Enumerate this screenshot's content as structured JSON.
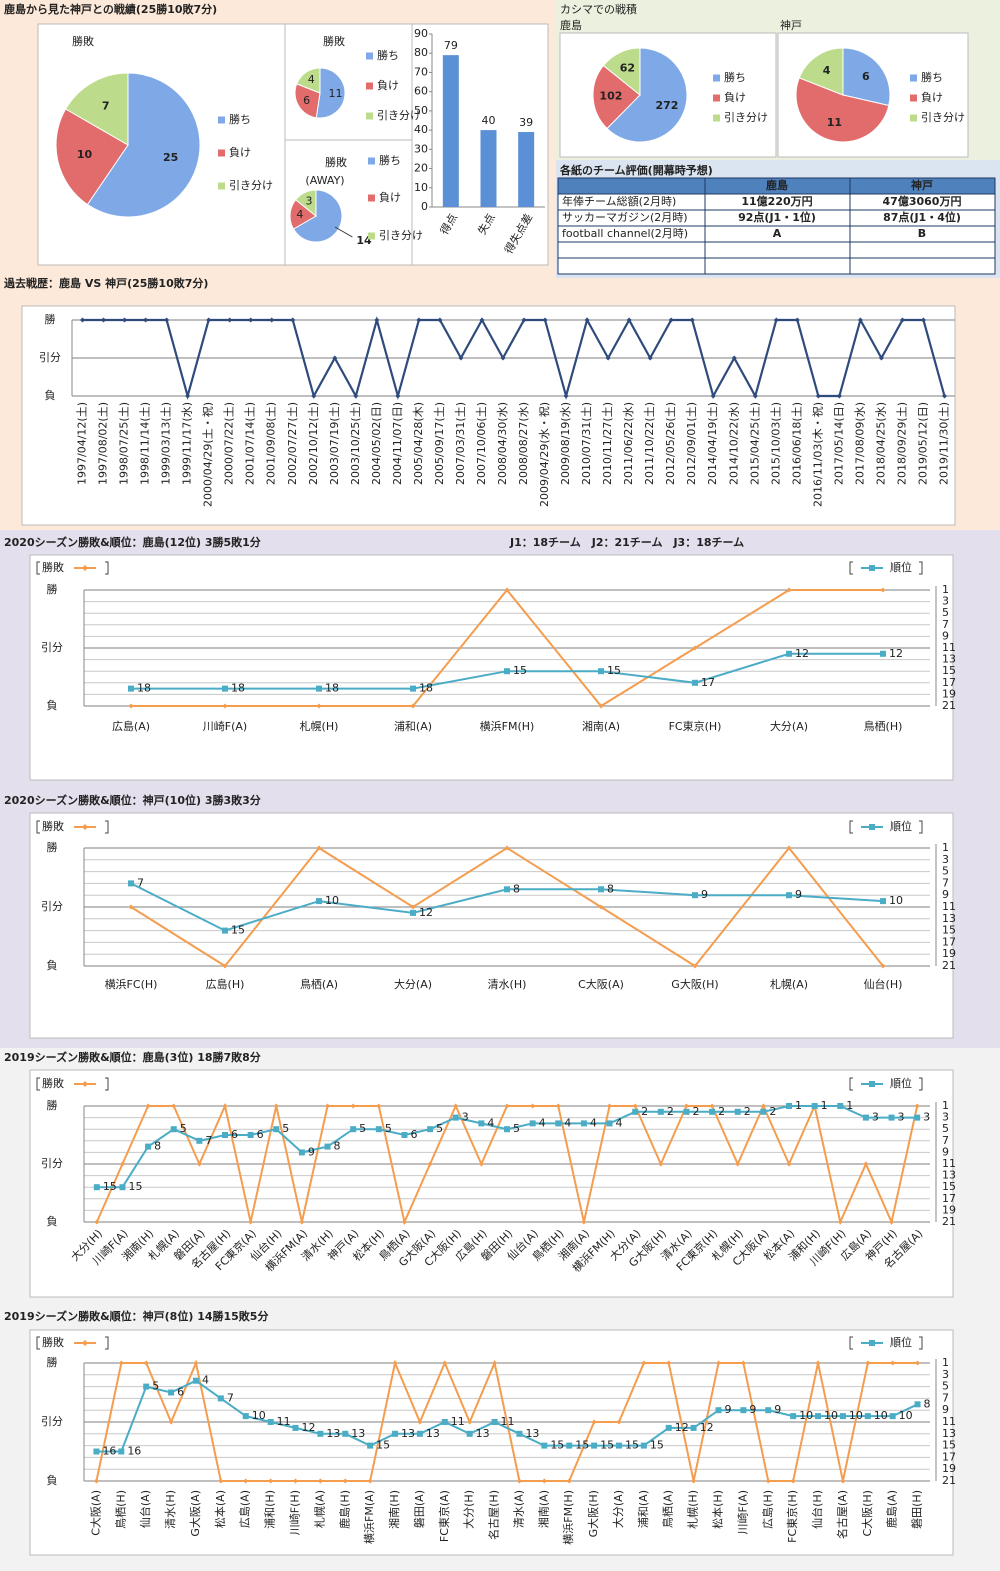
{
  "headings": {
    "record": "鹿島から見た神戸との戦績(25勝10敗7分)",
    "kashima": "カシマでの戦積"
  },
  "table": {
    "title": "各紙のチーム評価(開幕時予想)",
    "columns": [
      "鹿島",
      "神戸"
    ],
    "rows": [
      [
        "年俸チーム総額(2月時)",
        "11億220万円",
        "47億3060万円"
      ],
      [
        "サッカーマガジン(2月時)",
        "92点(J1・1位)",
        "87点(J1・4位)"
      ],
      [
        "football channel(2月時)",
        "A",
        "B"
      ]
    ]
  },
  "chart_data": [
    {
      "type": "pie",
      "title": "勝敗",
      "categories": [
        "勝ち",
        "負け",
        "引き分け"
      ],
      "values": [
        25,
        10,
        7
      ],
      "colors": [
        "#7fa9e6",
        "#e26b6b",
        "#bcdc8c"
      ]
    },
    {
      "type": "pie",
      "title": "勝敗",
      "categories": [
        "勝ち",
        "負け",
        "引き分け"
      ],
      "values": [
        11,
        6,
        4
      ],
      "colors": [
        "#7fa9e6",
        "#e26b6b",
        "#bcdc8c"
      ]
    },
    {
      "type": "pie",
      "title": "勝敗",
      "subtitle": "(AWAY)",
      "categories": [
        "勝ち",
        "負け",
        "引き分け"
      ],
      "values": [
        14,
        4,
        3
      ],
      "colors": [
        "#7fa9e6",
        "#e26b6b",
        "#bcdc8c"
      ]
    },
    {
      "type": "bar",
      "categories": [
        "得点",
        "失点",
        "得失点差"
      ],
      "values": [
        79,
        40,
        39
      ],
      "color": "#5b8fd6",
      "ylim": [
        0,
        90
      ],
      "yticks": [
        0,
        10,
        20,
        30,
        40,
        50,
        60,
        70,
        80,
        90
      ]
    },
    {
      "type": "pie",
      "title": "鹿島",
      "categories": [
        "勝ち",
        "負け",
        "引き分け"
      ],
      "values": [
        272,
        102,
        62
      ],
      "colors": [
        "#7fa9e6",
        "#e26b6b",
        "#bcdc8c"
      ]
    },
    {
      "type": "pie",
      "title": "神戸",
      "categories": [
        "勝ち",
        "負け",
        "引き分け"
      ],
      "values": [
        6,
        11,
        4
      ],
      "colors": [
        "#7fa9e6",
        "#e26b6b",
        "#bcdc8c"
      ]
    },
    {
      "type": "line",
      "title": "過去戦歴：鹿島 VS 神戸(25勝10敗7分)",
      "categories": [
        "1997/04/12(土)",
        "1997/08/02(土)",
        "1998/07/25(土)",
        "1998/11/14(土)",
        "1999/03/13(土)",
        "1999/11/17(水)",
        "2000/04/29(土・祝)",
        "2000/07/22(土)",
        "2001/07/14(土)",
        "2001/09/08(土)",
        "2002/07/27(土)",
        "2002/10/12(土)",
        "2003/07/19(土)",
        "2003/10/25(土)",
        "2004/05/02(日)",
        "2004/11/07(日)",
        "2005/04/28(木)",
        "2005/09/17(土)",
        "2007/03/31(土)",
        "2007/10/06(土)",
        "2008/04/30(水)",
        "2008/08/27(水)",
        "2009/04/29(水・祝)",
        "2009/08/19(水)",
        "2010/07/31(土)",
        "2010/11/27(土)",
        "2011/06/22(水)",
        "2011/10/22(土)",
        "2012/05/26(土)",
        "2012/09/01(土)",
        "2014/04/19(土)",
        "2014/10/22(水)",
        "2015/04/25(土)",
        "2015/10/03(土)",
        "2016/06/18(土)",
        "2016/11/03(木・祝)",
        "2017/05/14(日)",
        "2017/08/09(水)",
        "2018/04/25(水)",
        "2018/09/29(土)",
        "2019/05/12(日)",
        "2019/11/30(土)"
      ],
      "values": [
        2,
        2,
        2,
        2,
        2,
        0,
        2,
        2,
        2,
        2,
        2,
        0,
        1,
        0,
        2,
        0,
        2,
        2,
        1,
        2,
        1,
        2,
        2,
        0,
        2,
        1,
        2,
        1,
        2,
        2,
        0,
        1,
        0,
        2,
        2,
        0,
        0,
        2,
        1,
        2,
        2,
        0
      ],
      "color": "#2f4b7c",
      "ylim": [
        0,
        2
      ],
      "yticks": [
        {
          "value": 0,
          "label": "負"
        },
        {
          "value": 1,
          "label": "引分"
        },
        {
          "value": 2,
          "label": "勝"
        }
      ],
      "grid": true
    },
    {
      "type": "line",
      "title": "2020シーズン勝敗&順位：鹿島(12位) 3勝5敗1分",
      "note": "J1：18チーム　J2：21チーム　J3：18チーム",
      "categories": [
        "広島(A)",
        "川崎F(A)",
        "札幌(H)",
        "浦和(A)",
        "横浜FM(H)",
        "湘南(A)",
        "FC東京(H)",
        "大分(A)",
        "鳥栖(H)"
      ],
      "series": [
        {
          "name": "勝敗",
          "color": "#f59d4f",
          "values": [
            0,
            0,
            0,
            0,
            2,
            0,
            1,
            2,
            2
          ]
        },
        {
          "name": "順位",
          "color": "#4bacc6",
          "values": [
            18,
            18,
            18,
            18,
            15,
            15,
            17,
            12,
            12
          ],
          "axis": "y2"
        }
      ],
      "ylim": [
        0,
        2
      ],
      "yticks": [
        {
          "value": 0,
          "label": "負"
        },
        {
          "value": 1,
          "label": "引分"
        },
        {
          "value": 2,
          "label": "勝"
        }
      ],
      "y2lim": [
        21,
        1
      ],
      "y2ticks": [
        1,
        3,
        5,
        7,
        9,
        11,
        13,
        15,
        17,
        19,
        21
      ],
      "grid": true
    },
    {
      "type": "line",
      "title": "2020シーズン勝敗&順位：神戸(10位) 3勝3敗3分",
      "categories": [
        "横浜FC(H)",
        "広島(H)",
        "鳥栖(A)",
        "大分(A)",
        "清水(H)",
        "C大阪(A)",
        "G大阪(H)",
        "札幌(A)",
        "仙台(H)"
      ],
      "series": [
        {
          "name": "勝敗",
          "color": "#f59d4f",
          "values": [
            1,
            0,
            2,
            1,
            2,
            1,
            0,
            2,
            0
          ]
        },
        {
          "name": "順位",
          "color": "#4bacc6",
          "values": [
            7,
            15,
            10,
            12,
            8,
            8,
            9,
            9,
            10
          ],
          "axis": "y2"
        }
      ],
      "ylim": [
        0,
        2
      ],
      "yticks": [
        {
          "value": 0,
          "label": "負"
        },
        {
          "value": 1,
          "label": "引分"
        },
        {
          "value": 2,
          "label": "勝"
        }
      ],
      "y2lim": [
        21,
        1
      ],
      "y2ticks": [
        1,
        3,
        5,
        7,
        9,
        11,
        13,
        15,
        17,
        19,
        21
      ],
      "grid": true
    },
    {
      "type": "line",
      "title": "2019シーズン勝敗&順位：鹿島(3位) 18勝7敗8分",
      "categories": [
        "大分(H)",
        "川崎F(A)",
        "湘南(H)",
        "札幌(A)",
        "磐田(A)",
        "名古屋(H)",
        "FC東京(A)",
        "仙台(H)",
        "横浜FM(A)",
        "清水(H)",
        "神戸(A)",
        "松本(H)",
        "鳥栖(A)",
        "G大阪(A)",
        "C大阪(H)",
        "広島(H)",
        "磐田(H)",
        "仙台(A)",
        "鳥栖(H)",
        "湘南(A)",
        "横浜FM(H)",
        "大分(A)",
        "G大阪(H)",
        "清水(A)",
        "FC東京(H)",
        "札幌(H)",
        "C大阪(A)",
        "松本(A)",
        "浦和(H)",
        "川崎F(H)",
        "広島(A)",
        "神戸(H)",
        "名古屋(A)"
      ],
      "series": [
        {
          "name": "勝敗",
          "color": "#f59d4f",
          "values": [
            0,
            1,
            2,
            2,
            1,
            2,
            0,
            2,
            0,
            2,
            2,
            2,
            0,
            1,
            2,
            1,
            2,
            2,
            2,
            0,
            2,
            2,
            1,
            2,
            2,
            1,
            2,
            1,
            2,
            0,
            1,
            0,
            2
          ]
        },
        {
          "name": "順位",
          "color": "#4bacc6",
          "values": [
            15,
            15,
            8,
            5,
            7,
            6,
            6,
            5,
            9,
            8,
            5,
            5,
            6,
            5,
            3,
            4,
            5,
            4,
            4,
            4,
            4,
            2,
            2,
            2,
            2,
            2,
            2,
            1,
            1,
            1,
            3,
            3,
            3
          ],
          "axis": "y2"
        }
      ],
      "ylim": [
        0,
        2
      ],
      "yticks": [
        {
          "value": 0,
          "label": "負"
        },
        {
          "value": 1,
          "label": "引分"
        },
        {
          "value": 2,
          "label": "勝"
        }
      ],
      "y2lim": [
        21,
        1
      ],
      "y2ticks": [
        1,
        3,
        5,
        7,
        9,
        11,
        13,
        15,
        17,
        19,
        21
      ],
      "grid": true
    },
    {
      "type": "line",
      "title": "2019シーズン勝敗&順位：神戸(8位) 14勝15敗5分",
      "categories": [
        "C大阪(A)",
        "鳥栖(H)",
        "仙台(A)",
        "清水(H)",
        "G大阪(A)",
        "松本(A)",
        "広島(A)",
        "浦和(H)",
        "川崎F(H)",
        "札幌(A)",
        "鹿島(H)",
        "横浜FM(A)",
        "湘南(H)",
        "磐田(A)",
        "FC東京(A)",
        "大分(H)",
        "名古屋(H)",
        "清水(A)",
        "湘南(A)",
        "横浜FM(H)",
        "G大阪(H)",
        "大分(A)",
        "浦和(A)",
        "鳥栖(A)",
        "札幌(H)",
        "松本(H)",
        "川崎F(A)",
        "広島(H)",
        "FC東京(H)",
        "仙台(H)",
        "名古屋(A)",
        "C大阪(H)",
        "鹿島(A)",
        "磐田(H)"
      ],
      "series": [
        {
          "name": "勝敗",
          "color": "#f59d4f",
          "values": [
            0,
            2,
            2,
            1,
            2,
            0,
            0,
            0,
            0,
            0,
            0,
            0,
            2,
            1,
            2,
            1,
            2,
            0,
            0,
            0,
            1,
            1,
            2,
            2,
            0,
            2,
            2,
            0,
            0,
            2,
            0,
            2,
            2,
            2
          ]
        },
        {
          "name": "順位",
          "color": "#4bacc6",
          "values": [
            16,
            16,
            5,
            6,
            4,
            7,
            10,
            11,
            12,
            13,
            13,
            15,
            13,
            13,
            11,
            13,
            11,
            13,
            15,
            15,
            15,
            15,
            15,
            12,
            12,
            9,
            9,
            9,
            10,
            10,
            10,
            10,
            10,
            8
          ],
          "axis": "y2"
        }
      ],
      "ylim": [
        0,
        2
      ],
      "yticks": [
        {
          "value": 0,
          "label": "負"
        },
        {
          "value": 1,
          "label": "引分"
        },
        {
          "value": 2,
          "label": "勝"
        }
      ],
      "y2lim": [
        21,
        1
      ],
      "y2ticks": [
        1,
        3,
        5,
        7,
        9,
        11,
        13,
        15,
        17,
        19,
        21
      ],
      "grid": true
    }
  ]
}
